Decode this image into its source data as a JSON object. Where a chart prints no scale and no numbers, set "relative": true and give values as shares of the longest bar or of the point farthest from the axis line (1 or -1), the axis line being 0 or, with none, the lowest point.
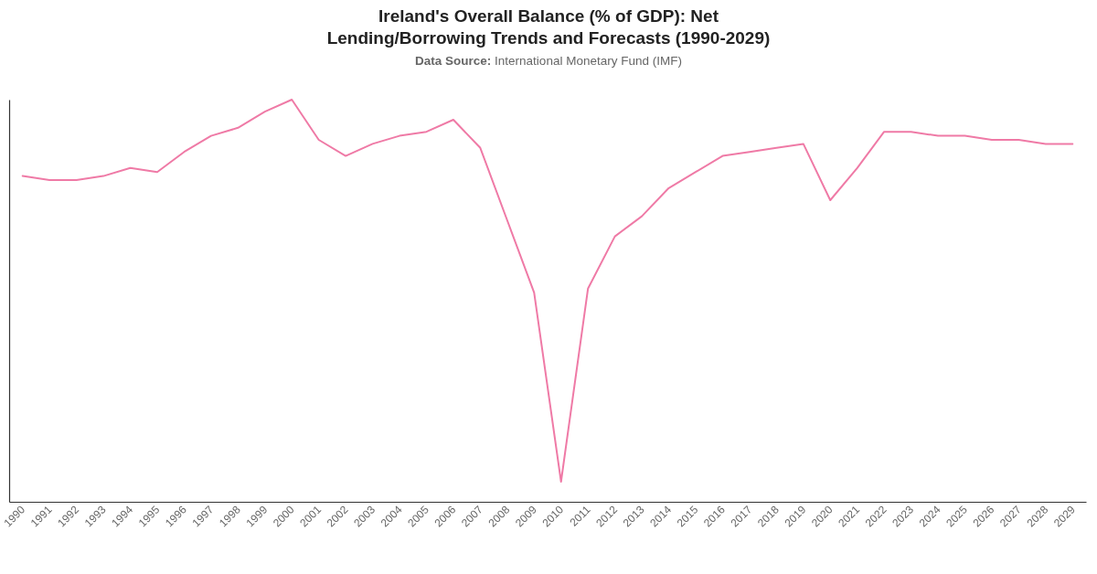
{
  "chart_data": {
    "type": "line",
    "title": "Ireland's Overall Balance (% of GDP): Net Lending/Borrowing Trends and Forecasts (1990-2029)",
    "subtitle": "Data Source: International Monetary Fund (IMF)",
    "categories": [
      "1990",
      "1991",
      "1992",
      "1993",
      "1994",
      "1995",
      "1996",
      "1997",
      "1998",
      "1999",
      "2000",
      "2001",
      "2002",
      "2003",
      "2004",
      "2005",
      "2006",
      "2007",
      "2008",
      "2009",
      "2010",
      "2011",
      "2012",
      "2013",
      "2014",
      "2015",
      "2016",
      "2017",
      "2018",
      "2019",
      "2020",
      "2021",
      "2022",
      "2023",
      "2024",
      "2025",
      "2026",
      "2027",
      "2028",
      "2029"
    ],
    "values": [
      0.81,
      0.8,
      0.8,
      0.81,
      0.83,
      0.82,
      0.87,
      0.91,
      0.93,
      0.97,
      1,
      0.9,
      0.86,
      0.89,
      0.91,
      0.92,
      0.95,
      0.88,
      0.7,
      0.52,
      0.05,
      0.53,
      0.66,
      0.71,
      0.78,
      0.82,
      0.86,
      0.87,
      0.88,
      0.89,
      0.75,
      0.83,
      0.92,
      0.92,
      0.91,
      0.91,
      0.9,
      0.9,
      0.89,
      0.89
    ],
    "color": "#ef7aa6",
    "relative": true
  }
}
